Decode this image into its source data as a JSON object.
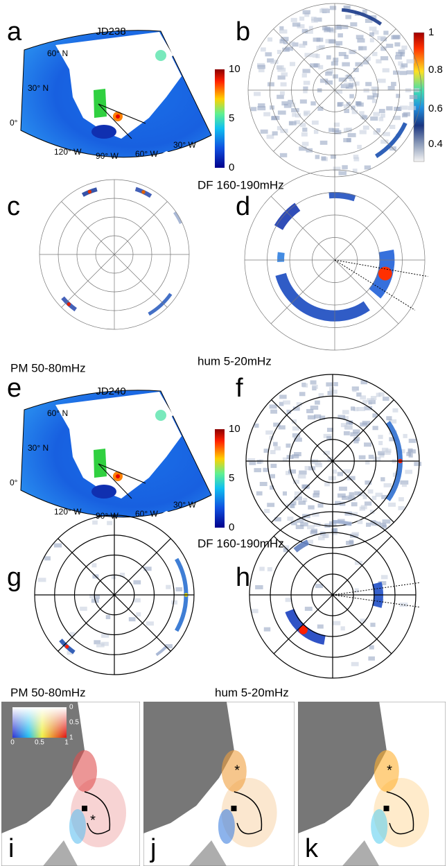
{
  "panels": [
    {
      "letter": "a",
      "title": "JD238",
      "map_labels": [
        "60° N",
        "30° N",
        "0°",
        "120° W",
        "90° W",
        "60° W",
        "30° W"
      ],
      "colorbar_ticks": [
        10,
        5,
        0
      ]
    },
    {
      "letter": "b",
      "colorbar_ticks": [
        1,
        0.8,
        0.6,
        0.4
      ]
    },
    {
      "letter": "c"
    },
    {
      "letter": "d"
    },
    {
      "letter": "e",
      "title": "JD240",
      "map_labels": [
        "60° N",
        "30° N",
        "0°",
        "120° W",
        "90° W",
        "60° W",
        "30° W"
      ],
      "colorbar_ticks": [
        10,
        5,
        0
      ]
    },
    {
      "letter": "f"
    },
    {
      "letter": "g"
    },
    {
      "letter": "h"
    },
    {
      "letter": "i",
      "inset_ticks_vertical": [
        0,
        0.5,
        1
      ],
      "inset_ticks_horizontal": [
        0,
        0.5,
        1
      ]
    },
    {
      "letter": "j"
    },
    {
      "letter": "k"
    }
  ],
  "captions": [
    "DF 160-190mHz",
    "PM 50-80mHz",
    "hum 5-20mHz",
    "DF 160-190mHz",
    "PM 50-80mHz",
    "hum 5-20mHz"
  ]
}
